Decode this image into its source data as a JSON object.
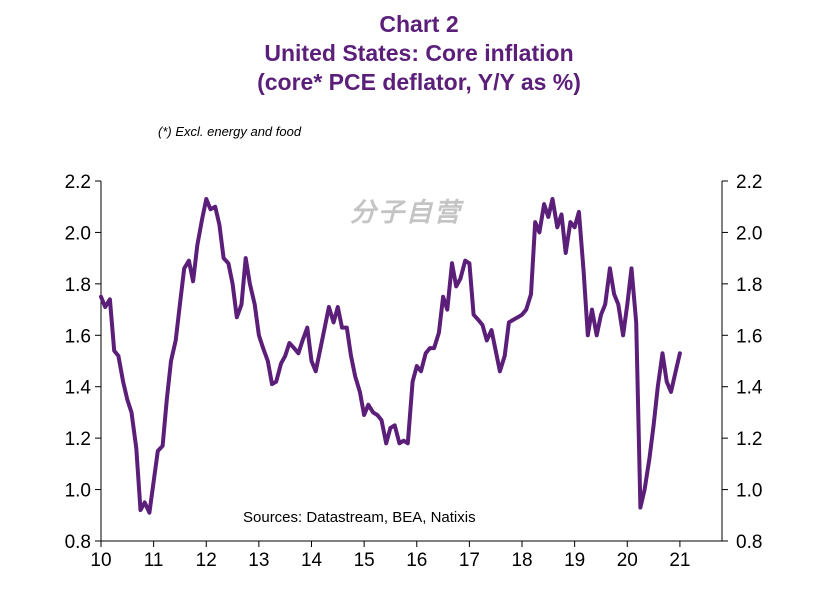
{
  "header": {
    "chart_number": "Chart 2",
    "title": "United States: Core inflation",
    "subtitle": "(core* PCE deflator, Y/Y as %)"
  },
  "footnote": "(*) Excl. energy and food",
  "watermark": "分子自营",
  "source": "Sources:  Datastream,  BEA, Natixis",
  "colors": {
    "title": "#5b1f7a",
    "line": "#5b1f7a",
    "axis": "#000000"
  },
  "chart_data": {
    "type": "line",
    "title": "United States: Core inflation",
    "subtitle": "(core* PCE deflator, Y/Y as %)",
    "xlabel": "",
    "ylabel": "",
    "xlim": [
      10,
      21.8
    ],
    "ylim": [
      0.8,
      2.2
    ],
    "x_ticks": [
      10,
      11,
      12,
      13,
      14,
      15,
      16,
      17,
      18,
      19,
      20,
      21
    ],
    "x_tick_labels": [
      "10",
      "11",
      "12",
      "13",
      "14",
      "15",
      "16",
      "17",
      "18",
      "19",
      "20",
      "21"
    ],
    "y_ticks": [
      0.8,
      1.0,
      1.2,
      1.4,
      1.6,
      1.8,
      2.0,
      2.2
    ],
    "y_tick_labels": [
      "0.8",
      "1.0",
      "1.2",
      "1.4",
      "1.6",
      "1.8",
      "2.0",
      "2.2"
    ],
    "secondary_y_axis": true,
    "grid": false,
    "series": [
      {
        "x": [
          10.0,
          10.08,
          10.17,
          10.25,
          10.33,
          10.42,
          10.5,
          10.58,
          10.67,
          10.75,
          10.83,
          10.92,
          11.0,
          11.08,
          11.17,
          11.25,
          11.33,
          11.42,
          11.5,
          11.58,
          11.67,
          11.75,
          11.83,
          11.92,
          12.0,
          12.08,
          12.17,
          12.25,
          12.33,
          12.42,
          12.5,
          12.58,
          12.67,
          12.75,
          12.83,
          12.92,
          13.0,
          13.08,
          13.17,
          13.25,
          13.33,
          13.42,
          13.5,
          13.58,
          13.67,
          13.75,
          13.83,
          13.92,
          14.0,
          14.08,
          14.17,
          14.25,
          14.33,
          14.42,
          14.5,
          14.58,
          14.67,
          14.75,
          14.83,
          14.92,
          15.0,
          15.08,
          15.17,
          15.25,
          15.33,
          15.42,
          15.5,
          15.58,
          15.67,
          15.75,
          15.83,
          15.92,
          16.0,
          16.08,
          16.17,
          16.25,
          16.33,
          16.42,
          16.5,
          16.58,
          16.67,
          16.75,
          16.83,
          16.92,
          17.0,
          17.08,
          17.17,
          17.25,
          17.33,
          17.42,
          17.5,
          17.58,
          17.67,
          17.75,
          17.83,
          17.92,
          18.0,
          18.08,
          18.17,
          18.25,
          18.33,
          18.42,
          18.5,
          18.58,
          18.67,
          18.75,
          18.83,
          18.92,
          19.0,
          19.08,
          19.17,
          19.25,
          19.33,
          19.42,
          19.5,
          19.58,
          19.67,
          19.75,
          19.83,
          19.92,
          20.0,
          20.08,
          20.17,
          20.25,
          20.33,
          20.42,
          20.5,
          20.58,
          20.67,
          20.75,
          20.83,
          20.92,
          21.0
        ],
        "values": [
          1.75,
          1.71,
          1.74,
          1.54,
          1.52,
          1.42,
          1.35,
          1.3,
          1.16,
          0.92,
          0.95,
          0.91,
          1.03,
          1.15,
          1.17,
          1.35,
          1.5,
          1.58,
          1.72,
          1.86,
          1.89,
          1.81,
          1.95,
          2.05,
          2.13,
          2.09,
          2.1,
          2.03,
          1.9,
          1.88,
          1.8,
          1.67,
          1.72,
          1.9,
          1.8,
          1.72,
          1.6,
          1.55,
          1.5,
          1.41,
          1.42,
          1.49,
          1.52,
          1.57,
          1.55,
          1.53,
          1.58,
          1.63,
          1.5,
          1.46,
          1.55,
          1.63,
          1.71,
          1.65,
          1.71,
          1.63,
          1.63,
          1.52,
          1.44,
          1.38,
          1.29,
          1.33,
          1.3,
          1.29,
          1.27,
          1.18,
          1.24,
          1.25,
          1.18,
          1.19,
          1.18,
          1.42,
          1.48,
          1.46,
          1.53,
          1.55,
          1.55,
          1.61,
          1.75,
          1.7,
          1.88,
          1.79,
          1.82,
          1.89,
          1.88,
          1.68,
          1.66,
          1.64,
          1.58,
          1.62,
          1.54,
          1.46,
          1.52,
          1.65,
          1.66,
          1.67,
          1.68,
          1.7,
          1.76,
          2.04,
          2.0,
          2.11,
          2.06,
          2.13,
          2.02,
          2.07,
          1.92,
          2.04,
          2.02,
          2.08,
          1.85,
          1.6,
          1.7,
          1.6,
          1.68,
          1.72,
          1.86,
          1.76,
          1.72,
          1.6,
          1.72,
          1.86,
          1.65,
          0.93,
          1.0,
          1.12,
          1.25,
          1.4,
          1.53,
          1.42,
          1.38,
          1.46,
          1.53
        ]
      }
    ],
    "annotations": [
      "Sources:  Datastream,  BEA, Natixis"
    ]
  }
}
